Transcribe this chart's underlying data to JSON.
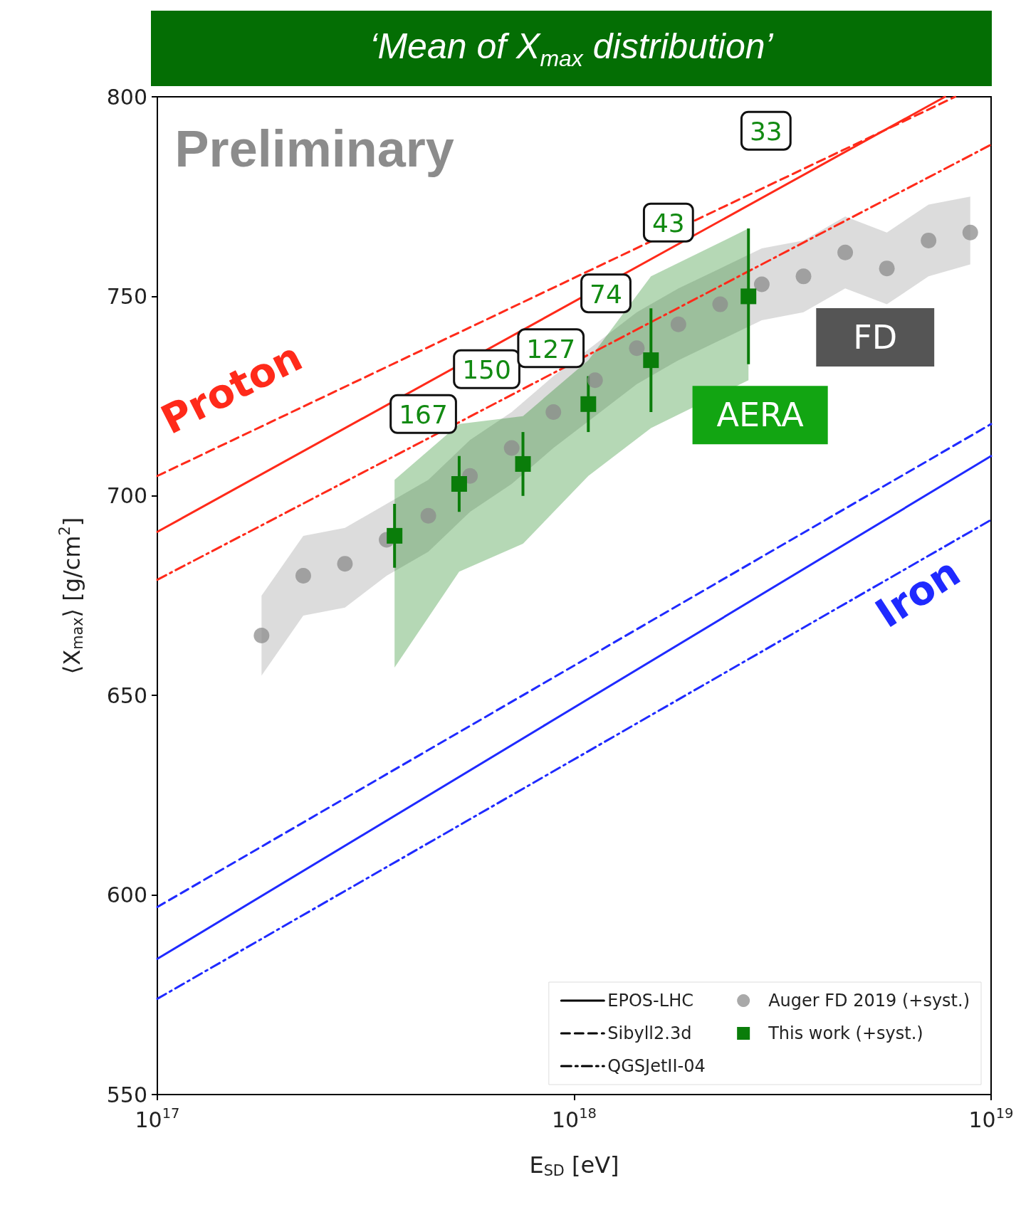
{
  "chart_data": {
    "type": "line",
    "title": "‘Mean of X$_{max}$ distribution’",
    "xlabel": "E$_{SD}$ [eV]",
    "ylabel": "⟨X$_{max}$⟩ [g/cm$^{2}$]",
    "log": "x",
    "grid": false,
    "legend": "bottom right",
    "xlim": [
      1e+17,
      1e+19
    ],
    "xticks": [
      {
        "value": 1e+17,
        "label": "10$^{17}$"
      },
      {
        "value": 1e+18,
        "label": "10$^{18}$"
      },
      {
        "value": 1e+19,
        "label": "10$^{19}$"
      }
    ],
    "ylim": [
      550,
      800
    ],
    "yticks": [
      550,
      600,
      650,
      700,
      750,
      800
    ],
    "series": [
      {
        "name": "EPOS-LHC",
        "color": "#000000",
        "line_style": "solid"
      },
      {
        "name": "Sibyll2.3d",
        "color": "#000000",
        "line_style": "dashed"
      },
      {
        "name": "QGSJetII-04",
        "color": "#000000",
        "line_style": "dashdot"
      },
      {
        "color": "#ff2a1a",
        "line_style": "solid",
        "x": [
          1e+17,
          7.75e+18
        ],
        "values": [
          691,
          800
        ]
      },
      {
        "color": "#ff2a1a",
        "line_style": "dashed",
        "x": [
          1e+17,
          8.2e+18
        ],
        "values": [
          705,
          800
        ]
      },
      {
        "color": "#ff2a1a",
        "line_style": "dashdot",
        "x": [
          1e+17,
          1e+19
        ],
        "values": [
          679,
          788
        ]
      },
      {
        "color": "#1f2aff",
        "line_style": "solid",
        "x": [
          1e+17,
          1e+19
        ],
        "values": [
          584,
          710
        ]
      },
      {
        "color": "#1f2aff",
        "line_style": "dashed",
        "x": [
          1e+17,
          1e+19
        ],
        "values": [
          597,
          718
        ]
      },
      {
        "color": "#1f2aff",
        "line_style": "dashdot",
        "x": [
          1e+17,
          1e+19
        ],
        "values": [
          574,
          694
        ]
      },
      {
        "name": "Auger FD 2019 (+syst.)",
        "type": "scatter",
        "marker": "circle",
        "color": "#8c8c8c",
        "x": [
          1.778e+17,
          2.239e+17,
          2.818e+17,
          3.548e+17,
          4.467e+17,
          5.623e+17,
          7.079e+17,
          8.913e+17,
          1.122e+18,
          1.413e+18,
          1.778e+18,
          2.239e+18,
          2.818e+18,
          3.548e+18,
          4.467e+18,
          5.623e+18,
          7.079e+18,
          8.913e+18
        ],
        "values": [
          665,
          680,
          683,
          689,
          695,
          705,
          712,
          721,
          729,
          737,
          743,
          748,
          753,
          755,
          761,
          757,
          764,
          766
        ],
        "lower": [
          655,
          670,
          672,
          680,
          686,
          696,
          703,
          712,
          720,
          728,
          734,
          739,
          744,
          746,
          752,
          748,
          755,
          758
        ],
        "upper": [
          675,
          690,
          692,
          698,
          704,
          714,
          721,
          730,
          738,
          746,
          752,
          757,
          762,
          764,
          770,
          766,
          773,
          775
        ]
      },
      {
        "name": "This work (+syst.)",
        "type": "scatter",
        "marker": "square",
        "color": "#0a7d0a",
        "x": [
          3.707e+17,
          5.297e+17,
          7.534e+17,
          1.081e+18,
          1.528e+18,
          2.618e+18
        ],
        "values": [
          690,
          703,
          708,
          723,
          734,
          750
        ],
        "errors": [
          8,
          7,
          8,
          7,
          13,
          17
        ],
        "lower": [
          657,
          681,
          688,
          705,
          717,
          729
        ],
        "upper": [
          704,
          718,
          720,
          734,
          755,
          767
        ]
      }
    ],
    "annotations": [
      "Preliminary",
      "Proton",
      "Iron",
      "FD",
      "AERA",
      "167",
      "150",
      "127",
      "74",
      "43",
      "33"
    ]
  }
}
